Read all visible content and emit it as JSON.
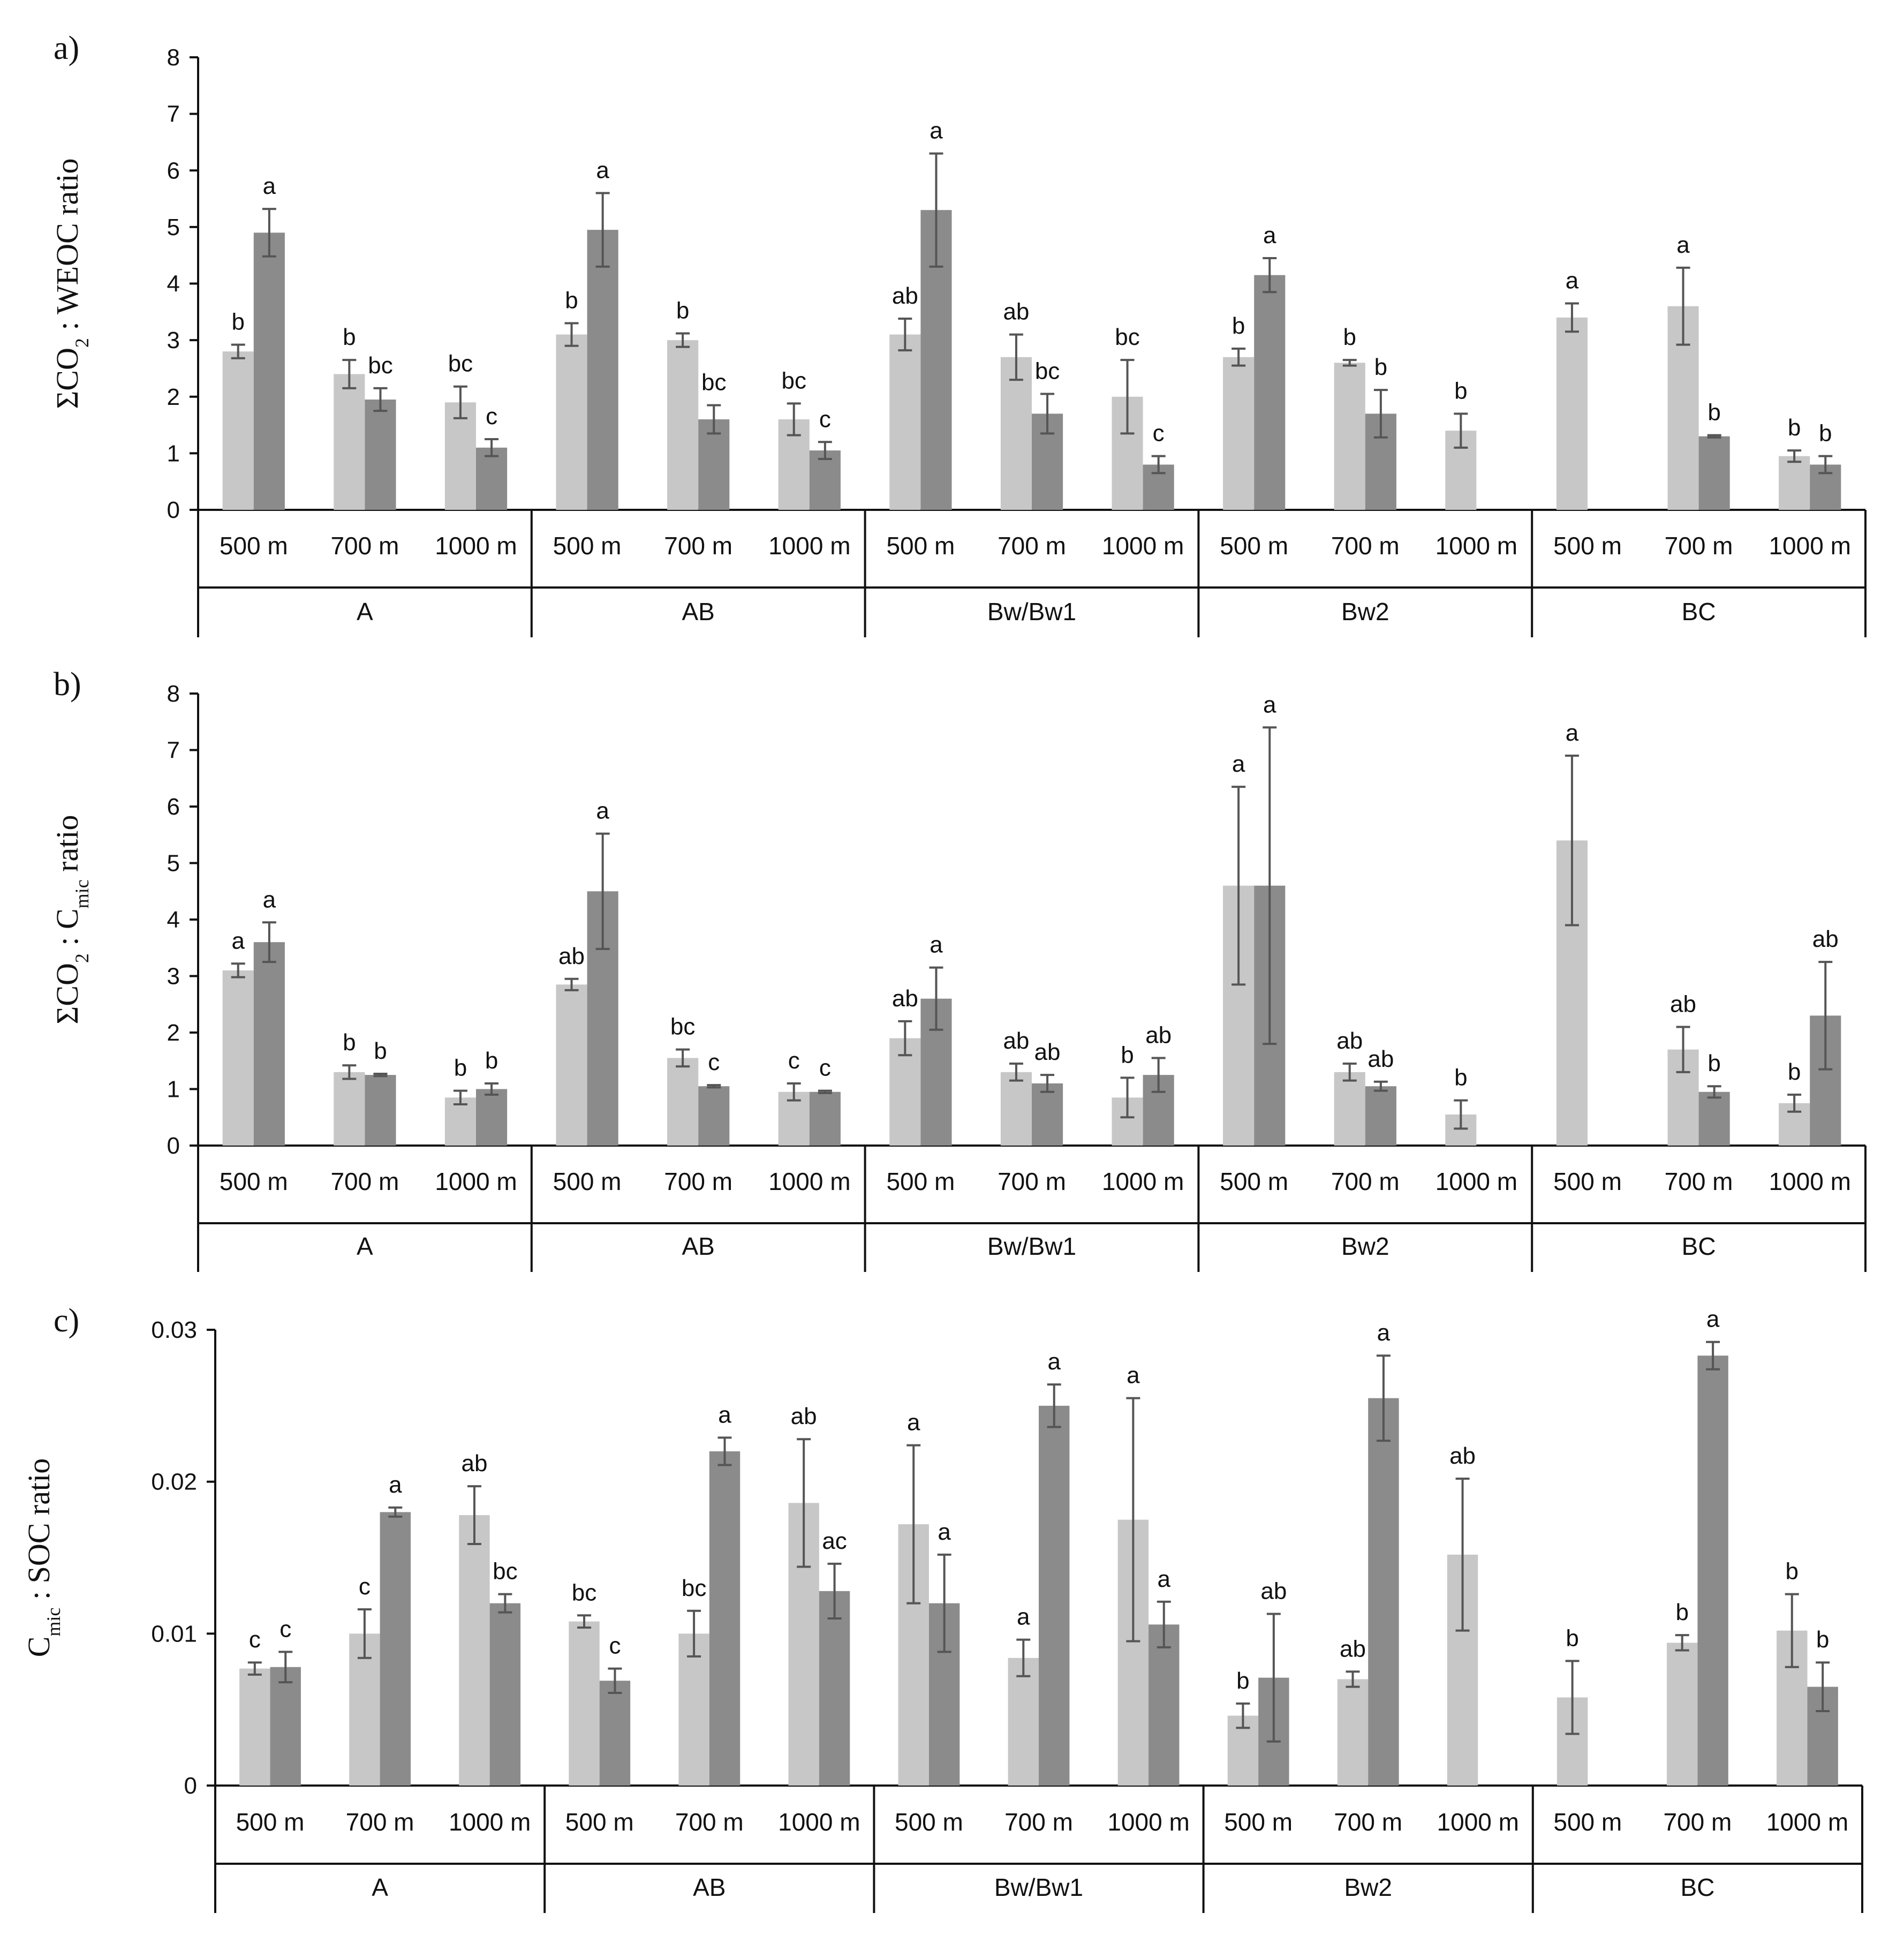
{
  "chart_data": [
    {
      "type": "bar",
      "panel_label": "a)",
      "ylabel_parts": [
        "ΣCO",
        "2",
        " : WEOC ratio"
      ],
      "ylim": [
        0,
        8
      ],
      "yticks": [
        "0",
        "1",
        "2",
        "3",
        "4",
        "5",
        "6",
        "7",
        "8"
      ],
      "horizons": [
        "A",
        "AB",
        "Bw/Bw1",
        "Bw2",
        "BC"
      ],
      "sites": [
        "500 m",
        "700 m",
        "1000 m"
      ],
      "series": [
        {
          "name": "light",
          "color": "#c7c7c7",
          "values": [
            2.8,
            2.4,
            1.9,
            3.1,
            3.0,
            1.6,
            3.1,
            2.7,
            2.0,
            2.7,
            2.6,
            1.4,
            3.4,
            3.6,
            0.95
          ],
          "errors": [
            0.12,
            0.25,
            0.28,
            0.2,
            0.12,
            0.28,
            0.28,
            0.4,
            0.65,
            0.15,
            0.05,
            0.3,
            0.25,
            0.68,
            0.1
          ],
          "letters": [
            "b",
            "b",
            "bc",
            "b",
            "b",
            "bc",
            "ab",
            "ab",
            "bc",
            "b",
            "b",
            "b",
            "a",
            "a",
            "b"
          ]
        },
        {
          "name": "dark",
          "color": "#8b8b8b",
          "values": [
            4.9,
            1.95,
            1.1,
            4.95,
            1.6,
            1.05,
            5.3,
            1.7,
            0.8,
            4.15,
            1.7,
            null,
            null,
            1.3,
            0.8
          ],
          "errors": [
            0.42,
            0.2,
            0.15,
            0.65,
            0.25,
            0.15,
            1.0,
            0.35,
            0.15,
            0.3,
            0.42,
            null,
            null,
            0.02,
            0.15
          ],
          "letters": [
            "a",
            "bc",
            "c",
            "a",
            "bc",
            "c",
            "a",
            "bc",
            "c",
            "a",
            "b",
            "",
            "",
            "b",
            "b"
          ]
        }
      ]
    },
    {
      "type": "bar",
      "panel_label": "b)",
      "ylabel_parts": [
        "ΣCO",
        "2",
        " : C",
        "mic",
        " ratio"
      ],
      "ylim": [
        0,
        8
      ],
      "yticks": [
        "0",
        "1",
        "2",
        "3",
        "4",
        "5",
        "6",
        "7",
        "8"
      ],
      "horizons": [
        "A",
        "AB",
        "Bw/Bw1",
        "Bw2",
        "BC"
      ],
      "sites": [
        "500 m",
        "700 m",
        "1000 m"
      ],
      "series": [
        {
          "name": "light",
          "color": "#c7c7c7",
          "values": [
            3.1,
            1.3,
            0.85,
            2.85,
            1.55,
            0.95,
            1.9,
            1.3,
            0.85,
            4.6,
            1.3,
            0.55,
            5.4,
            1.7,
            0.75
          ],
          "errors": [
            0.12,
            0.12,
            0.12,
            0.1,
            0.15,
            0.15,
            0.3,
            0.15,
            0.35,
            1.75,
            0.15,
            0.25,
            1.5,
            0.4,
            0.15
          ],
          "letters": [
            "a",
            "b",
            "b",
            "ab",
            "bc",
            "c",
            "ab",
            "ab",
            "b",
            "a",
            "ab",
            "b",
            "a",
            "ab",
            "b"
          ]
        },
        {
          "name": "dark",
          "color": "#8b8b8b",
          "values": [
            3.6,
            1.25,
            1.0,
            4.5,
            1.05,
            0.95,
            2.6,
            1.1,
            1.25,
            4.6,
            1.05,
            null,
            null,
            0.95,
            2.3
          ],
          "errors": [
            0.35,
            0.02,
            0.1,
            1.02,
            0.02,
            0.02,
            0.55,
            0.15,
            0.3,
            2.8,
            0.08,
            null,
            null,
            0.1,
            0.95
          ],
          "letters": [
            "a",
            "b",
            "b",
            "a",
            "c",
            "c",
            "a",
            "ab",
            "ab",
            "a",
            "ab",
            "",
            "",
            "b",
            "ab"
          ]
        }
      ]
    },
    {
      "type": "bar",
      "panel_label": "c)",
      "ylabel_parts": [
        "C",
        "mic",
        " : SOC ratio"
      ],
      "ylim": [
        0,
        0.03
      ],
      "yticks": [
        "0",
        "0.01",
        "0.02",
        "0.03"
      ],
      "horizons": [
        "A",
        "AB",
        "Bw/Bw1",
        "Bw2",
        "BC"
      ],
      "sites": [
        "500 m",
        "700 m",
        "1000 m"
      ],
      "series": [
        {
          "name": "light",
          "color": "#c7c7c7",
          "values": [
            0.0077,
            0.01,
            0.0178,
            0.0108,
            0.01,
            0.0186,
            0.0172,
            0.0084,
            0.0175,
            0.0046,
            0.007,
            0.0152,
            0.0058,
            0.0094,
            0.0102
          ],
          "errors": [
            0.0004,
            0.0016,
            0.0019,
            0.0004,
            0.0015,
            0.0042,
            0.0052,
            0.0012,
            0.008,
            0.0008,
            0.0005,
            0.005,
            0.0024,
            0.0005,
            0.0024
          ],
          "letters": [
            "c",
            "c",
            "ab",
            "bc",
            "bc",
            "ab",
            "a",
            "a",
            "a",
            "b",
            "ab",
            "ab",
            "b",
            "b",
            "b"
          ]
        },
        {
          "name": "dark",
          "color": "#8b8b8b",
          "values": [
            0.0078,
            0.018,
            0.012,
            0.0069,
            0.022,
            0.0128,
            0.012,
            0.025,
            0.0106,
            0.0071,
            0.0255,
            null,
            null,
            0.0283,
            0.0065
          ],
          "errors": [
            0.001,
            0.0003,
            0.0006,
            0.0008,
            0.0009,
            0.0018,
            0.0032,
            0.0014,
            0.0015,
            0.0042,
            0.0028,
            null,
            null,
            0.0009,
            0.0016
          ],
          "letters": [
            "c",
            "a",
            "bc",
            "c",
            "a",
            "ac",
            "a",
            "a",
            "a",
            "ab",
            "a",
            "",
            "",
            "a",
            "b"
          ]
        }
      ]
    }
  ]
}
